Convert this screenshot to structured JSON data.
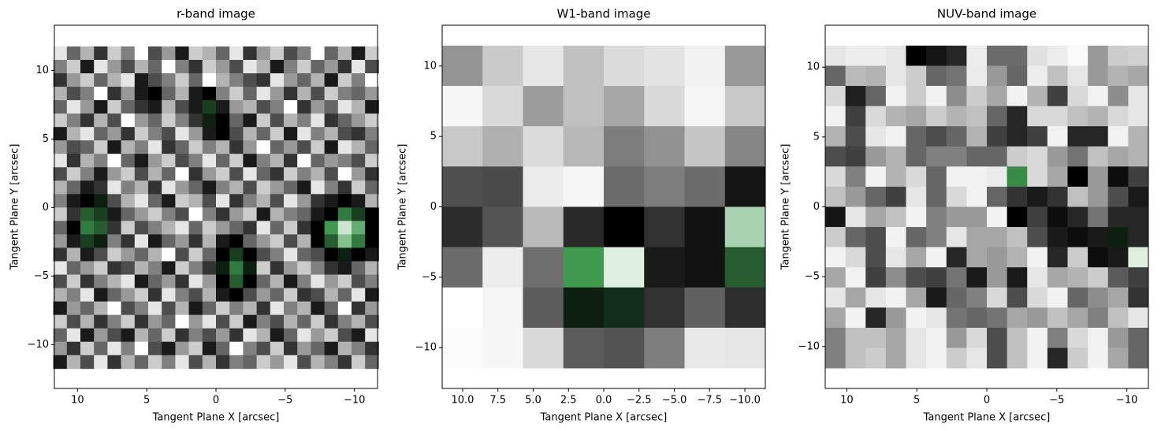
{
  "chart_data": [
    {
      "type": "heatmap",
      "title": "r-band image",
      "xlabel": "Tangent Plane X [arcsec]",
      "ylabel": "Tangent Plane Y [arcsec]",
      "xlim": [
        11.67,
        -11.67
      ],
      "ylim": [
        -13.2,
        13.3
      ],
      "extent": [
        11.75,
        -11.75,
        -11.75,
        11.75
      ],
      "xticks": [
        10,
        5,
        0,
        {
          "value": -5,
          "label": "−5"
        },
        {
          "value": -10,
          "label": "−10"
        }
      ],
      "yticks": [
        10,
        5,
        0,
        {
          "value": -5,
          "label": "−5"
        },
        {
          "value": -10,
          "label": "−10"
        }
      ],
      "colormap": [
        "#ffffff",
        "#808080",
        "#000000",
        "#3f9a50",
        "#f0f8f0"
      ],
      "clim": [
        0,
        2
      ],
      "z": [
        [
          0.1,
          0.6,
          0.3,
          0.8,
          0.2,
          0.5,
          0.0,
          0.7,
          0.4,
          0.9,
          0.2,
          0.3,
          0.6,
          0.1,
          0.8,
          0.4,
          0.2,
          0.7,
          0.5,
          0.0,
          0.6,
          0.3,
          0.9,
          0.2
        ],
        [
          0.5,
          0.2,
          0.9,
          0.1,
          0.4,
          0.7,
          0.3,
          0.6,
          0.0,
          0.5,
          0.8,
          0.2,
          0.4,
          0.7,
          0.1,
          0.3,
          0.9,
          0.5,
          0.2,
          0.6,
          0.4,
          0.8,
          0.1,
          0.7
        ],
        [
          0.8,
          0.4,
          0.2,
          0.6,
          0.3,
          0.1,
          0.9,
          0.7,
          0.5,
          0.2,
          0.6,
          0.0,
          0.3,
          0.5,
          0.7,
          0.8,
          0.1,
          0.4,
          0.6,
          0.3,
          0.9,
          0.2,
          0.5,
          0.0
        ],
        [
          0.3,
          0.7,
          0.5,
          0.0,
          0.8,
          0.4,
          0.9,
          1.0,
          0.6,
          0.3,
          0.9,
          1.0,
          0.5,
          0.2,
          0.6,
          0.1,
          0.4,
          0.8,
          0.3,
          0.7,
          0.2,
          0.5,
          0.6,
          0.4
        ],
        [
          0.6,
          0.1,
          0.4,
          0.9,
          0.2,
          0.6,
          0.8,
          0.9,
          0.3,
          0.7,
          0.9,
          1.2,
          0.9,
          0.4,
          0.3,
          0.7,
          0.5,
          0.0,
          0.8,
          0.4,
          0.6,
          0.1,
          0.3,
          0.9
        ],
        [
          0.2,
          0.5,
          0.8,
          0.3,
          0.7,
          0.0,
          0.4,
          0.6,
          0.2,
          0.5,
          0.8,
          1.1,
          1.0,
          0.6,
          0.9,
          0.2,
          0.7,
          0.3,
          0.5,
          0.1,
          0.8,
          0.6,
          0.4,
          0.2
        ],
        [
          0.9,
          0.3,
          0.1,
          0.6,
          0.4,
          0.8,
          0.2,
          0.5,
          0.7,
          0.1,
          0.4,
          0.9,
          1.0,
          0.7,
          0.3,
          0.6,
          0.2,
          0.9,
          0.1,
          0.5,
          0.3,
          0.7,
          0.8,
          0.5
        ],
        [
          0.4,
          0.7,
          0.6,
          0.2,
          0.9,
          0.3,
          0.5,
          0.1,
          0.8,
          0.6,
          0.2,
          0.5,
          0.3,
          0.8,
          0.4,
          0.0,
          0.6,
          0.4,
          0.7,
          0.2,
          0.9,
          0.1,
          0.3,
          0.6
        ],
        [
          0.1,
          0.8,
          0.3,
          0.5,
          0.0,
          0.6,
          0.9,
          0.4,
          0.2,
          0.7,
          0.5,
          0.1,
          0.6,
          0.2,
          0.9,
          0.5,
          0.3,
          0.8,
          0.0,
          0.6,
          0.4,
          0.5,
          0.7,
          0.2
        ],
        [
          0.7,
          0.2,
          0.5,
          0.9,
          0.4,
          0.2,
          0.7,
          0.3,
          0.6,
          0.0,
          0.8,
          0.4,
          0.2,
          0.7,
          0.1,
          0.6,
          0.8,
          0.2,
          0.5,
          0.3,
          0.7,
          0.0,
          0.4,
          0.8
        ],
        [
          0.3,
          0.6,
          0.9,
          0.8,
          0.1,
          0.5,
          0.3,
          0.8,
          0.1,
          0.4,
          0.6,
          0.9,
          0.5,
          0.3,
          0.7,
          0.2,
          0.4,
          0.6,
          0.9,
          0.1,
          0.5,
          0.8,
          0.2,
          0.6
        ],
        [
          0.5,
          0.9,
          1.0,
          1.1,
          0.7,
          0.3,
          0.1,
          0.6,
          0.9,
          0.2,
          0.3,
          0.7,
          0.1,
          0.8,
          0.5,
          0.3,
          0.7,
          0.1,
          0.4,
          0.8,
          0.9,
          1.0,
          0.9,
          0.3
        ],
        [
          0.2,
          0.8,
          1.3,
          1.2,
          0.9,
          0.6,
          0.4,
          0.2,
          0.5,
          0.7,
          0.0,
          0.5,
          0.8,
          0.4,
          0.2,
          0.9,
          0.3,
          0.5,
          0.6,
          0.9,
          1.0,
          1.4,
          1.2,
          1.0
        ],
        [
          0.6,
          1.0,
          1.4,
          1.3,
          0.8,
          0.2,
          0.7,
          0.5,
          0.3,
          0.1,
          0.6,
          0.2,
          0.4,
          0.6,
          0.8,
          0.1,
          0.6,
          0.2,
          0.8,
          1.0,
          1.5,
          1.9,
          1.6,
          1.0
        ],
        [
          0.4,
          0.9,
          1.2,
          1.1,
          0.5,
          0.8,
          0.1,
          0.9,
          0.6,
          0.4,
          0.8,
          0.3,
          0.9,
          1.0,
          0.6,
          0.4,
          0.2,
          0.7,
          0.3,
          1.0,
          1.3,
          1.7,
          1.4,
          1.0
        ],
        [
          0.8,
          0.3,
          0.9,
          0.7,
          0.2,
          0.4,
          0.6,
          0.3,
          0.0,
          0.7,
          0.2,
          0.6,
          1.0,
          1.2,
          1.0,
          0.7,
          0.5,
          0.1,
          0.6,
          0.7,
          1.0,
          1.1,
          1.0,
          0.9
        ],
        [
          0.1,
          0.6,
          0.4,
          0.2,
          0.8,
          0.7,
          0.3,
          0.5,
          0.9,
          0.2,
          0.5,
          0.8,
          1.1,
          1.4,
          1.1,
          0.2,
          0.8,
          0.4,
          0.2,
          0.5,
          0.8,
          0.9,
          0.6,
          0.3
        ],
        [
          0.7,
          0.2,
          0.8,
          0.5,
          0.3,
          0.1,
          0.9,
          0.6,
          0.4,
          0.8,
          0.1,
          0.4,
          1.0,
          1.3,
          1.0,
          0.6,
          0.3,
          0.9,
          0.5,
          0.1,
          0.4,
          0.2,
          0.7,
          0.5
        ],
        [
          0.3,
          0.5,
          0.1,
          0.9,
          0.6,
          0.4,
          0.2,
          0.8,
          0.1,
          0.5,
          0.7,
          0.3,
          0.9,
          1.0,
          0.7,
          0.4,
          0.6,
          0.2,
          0.8,
          0.7,
          0.3,
          0.6,
          0.1,
          0.9
        ],
        [
          0.9,
          0.4,
          0.6,
          0.3,
          0.0,
          0.7,
          0.5,
          0.1,
          0.7,
          0.3,
          0.9,
          0.6,
          0.2,
          0.5,
          0.3,
          0.8,
          0.1,
          0.5,
          0.3,
          0.9,
          0.6,
          0.0,
          0.8,
          0.4
        ],
        [
          0.2,
          0.7,
          0.3,
          0.8,
          0.5,
          0.2,
          0.8,
          0.4,
          0.6,
          0.0,
          0.4,
          0.1,
          0.7,
          0.2,
          0.9,
          0.5,
          0.7,
          0.3,
          0.6,
          0.2,
          0.8,
          0.5,
          0.3,
          0.7
        ],
        [
          0.6,
          0.1,
          0.9,
          0.4,
          0.7,
          0.9,
          0.3,
          0.6,
          0.2,
          0.8,
          0.5,
          0.7,
          0.4,
          0.8,
          0.1,
          0.3,
          0.9,
          0.6,
          0.1,
          0.4,
          0.2,
          0.7,
          0.9,
          0.1
        ],
        [
          0.4,
          0.8,
          0.2,
          0.6,
          0.1,
          0.5,
          0.0,
          0.7,
          0.9,
          0.4,
          0.2,
          0.9,
          0.6,
          0.0,
          0.5,
          0.7,
          0.2,
          0.8,
          0.4,
          0.6,
          0.9,
          0.3,
          0.5,
          0.8
        ],
        [
          0.9,
          0.3,
          0.7,
          0.1,
          0.8,
          0.3,
          0.6,
          0.2,
          0.5,
          0.1,
          0.7,
          0.3,
          0.8,
          0.5,
          0.6,
          0.2,
          0.4,
          0.1,
          0.7,
          0.3,
          0.5,
          0.8,
          0.2,
          0.6
        ]
      ]
    },
    {
      "type": "heatmap",
      "title": "W1-band image",
      "xlabel": "Tangent Plane X [arcsec]",
      "ylabel": "Tangent Plane Y [arcsec]",
      "xlim": [
        11.45,
        -11.45
      ],
      "ylim": [
        -12.9,
        12.9
      ],
      "extent": [
        11.45,
        -11.45,
        -11.45,
        11.45
      ],
      "xticks": [
        {
          "value": 10,
          "label": "10.0"
        },
        {
          "value": 7.5,
          "label": "7.5"
        },
        {
          "value": 5,
          "label": "5.0"
        },
        {
          "value": 2.5,
          "label": "2.5"
        },
        {
          "value": 0,
          "label": "0.0"
        },
        {
          "value": -2.5,
          "label": "−2.5"
        },
        {
          "value": -5,
          "label": "−5.0"
        },
        {
          "value": -7.5,
          "label": "−7.5"
        },
        {
          "value": -10,
          "label": "−10.0"
        }
      ],
      "yticks": [
        10,
        5,
        0,
        {
          "value": -5,
          "label": "−5"
        },
        {
          "value": -10,
          "label": "−10"
        }
      ],
      "colormap": [
        "#ffffff",
        "#808080",
        "#000000",
        "#3f9a50",
        "#f0f8f0"
      ],
      "clim": [
        0,
        2
      ],
      "z": [
        [
          0.42,
          0.21,
          0.1,
          0.25,
          0.14,
          0.11,
          0.05,
          0.4
        ],
        [
          0.03,
          0.15,
          0.39,
          0.25,
          0.35,
          0.15,
          0.04,
          0.22
        ],
        [
          0.22,
          0.31,
          0.14,
          0.28,
          0.51,
          0.43,
          0.23,
          0.48
        ],
        [
          0.69,
          0.71,
          0.08,
          0.04,
          0.58,
          0.51,
          0.58,
          0.92
        ],
        [
          0.83,
          0.67,
          0.27,
          0.84,
          1.0,
          0.81,
          0.93,
          1.8
        ],
        [
          0.58,
          0.07,
          0.57,
          1.5,
          1.95,
          0.9,
          0.93,
          1.3
        ],
        [
          0.0,
          0.04,
          0.64,
          1.1,
          1.15,
          0.81,
          0.62,
          0.82
        ],
        [
          0.01,
          0.03,
          0.15,
          0.64,
          0.68,
          0.51,
          0.09,
          0.1
        ]
      ]
    },
    {
      "type": "heatmap",
      "title": "NUV-band image",
      "xlabel": "Tangent Plane X [arcsec]",
      "ylabel": "Tangent Plane Y [arcsec]",
      "xlim": [
        11.54,
        -11.54
      ],
      "ylim": [
        -13.0,
        13.0
      ],
      "extent": [
        11.54,
        -11.54,
        -11.54,
        11.54
      ],
      "xticks": [
        10,
        5,
        0,
        {
          "value": -5,
          "label": "−5"
        },
        {
          "value": -10,
          "label": "−10"
        }
      ],
      "yticks": [
        10,
        5,
        0,
        {
          "value": -5,
          "label": "−5"
        },
        {
          "value": -10,
          "label": "−10"
        }
      ],
      "colormap": [
        "#ffffff",
        "#808080",
        "#000000",
        "#3f9a50",
        "#f0f8f0"
      ],
      "clim": [
        0,
        2
      ],
      "z": [
        [
          0.1,
          0.07,
          0.07,
          0.1,
          1,
          0.92,
          0.85,
          0.07,
          0.58,
          0.58,
          0.12,
          0.07,
          0.02,
          0.4,
          0.2,
          0.18
        ],
        [
          0.6,
          0.27,
          0.3,
          0.1,
          0.2,
          0.6,
          0.55,
          0.08,
          0.4,
          0.6,
          0.07,
          0.25,
          0.1,
          0.4,
          0.3,
          0.35
        ],
        [
          0.15,
          0.88,
          0.6,
          0.05,
          0.2,
          0.05,
          0.45,
          0.2,
          0.35,
          0.05,
          0.3,
          0.75,
          0.15,
          0.05,
          0.45,
          0.1
        ],
        [
          0.05,
          0.75,
          0.15,
          0.3,
          0.35,
          0.2,
          0.3,
          0.25,
          0.6,
          0.85,
          0.15,
          0.15,
          0.25,
          0.3,
          0.15,
          0.1
        ],
        [
          0.3,
          0.7,
          0.1,
          0.05,
          0.6,
          0.7,
          0.6,
          0.3,
          0.75,
          0.85,
          0.75,
          0.05,
          0.85,
          0.85,
          0.05,
          0.3
        ],
        [
          0.7,
          0.75,
          0.4,
          0.3,
          0.6,
          0.5,
          0.5,
          0.6,
          0.6,
          0.2,
          0.15,
          0.4,
          0.55,
          0.25,
          0.35,
          0.3
        ],
        [
          0.15,
          0.5,
          0.05,
          0.3,
          0.15,
          0.6,
          0.05,
          0.05,
          0.08,
          1.45,
          0.15,
          0.35,
          1,
          0.4,
          0.95,
          0.75
        ],
        [
          0.25,
          0.4,
          0.6,
          0.75,
          0.1,
          0.6,
          0.15,
          0.05,
          0.6,
          0.8,
          0.9,
          0.8,
          0.25,
          0.4,
          0.7,
          0.9
        ],
        [
          0.92,
          0.1,
          0.35,
          0.25,
          0.05,
          0.5,
          0.4,
          0.4,
          0.05,
          1,
          0.75,
          0.95,
          0.85,
          0.55,
          0.85,
          0.85
        ],
        [
          0.2,
          0.6,
          0.7,
          0.05,
          0.6,
          0.5,
          0.1,
          0.35,
          0.35,
          0.25,
          0.7,
          0.9,
          0.95,
          0.9,
          1.1,
          0.85
        ],
        [
          0.05,
          0.15,
          0.7,
          0.1,
          0.35,
          0.05,
          0.85,
          0.35,
          0.4,
          0.3,
          0.05,
          0.85,
          0.2,
          0.95,
          0.9,
          1.95
        ],
        [
          0.35,
          0.05,
          0.75,
          0.45,
          0.7,
          0.75,
          0.55,
          0.9,
          0.4,
          0.9,
          0.1,
          0.35,
          0.3,
          0.2,
          0.65,
          0.75
        ],
        [
          0.1,
          0.35,
          0.1,
          0.05,
          0.35,
          0.9,
          0.6,
          0.5,
          0.15,
          0.7,
          0.15,
          0.05,
          0.6,
          0.45,
          0.35,
          0.8
        ],
        [
          0.35,
          0.05,
          0.85,
          0.4,
          0.05,
          0.1,
          0.55,
          0.6,
          0.55,
          0.35,
          0.4,
          0.25,
          0.35,
          0.5,
          0.25,
          0.1
        ],
        [
          0.5,
          0.25,
          0.25,
          0.35,
          0.1,
          0.05,
          0.4,
          0.15,
          0.7,
          0.25,
          0.05,
          0.5,
          0.15,
          0.05,
          0.4,
          0.6
        ],
        [
          0.5,
          0.25,
          0.2,
          0.35,
          0.1,
          0.05,
          0.2,
          0.1,
          0.7,
          0.25,
          0.05,
          0.85,
          0.2,
          0.05,
          0.35,
          0.6
        ]
      ]
    }
  ]
}
